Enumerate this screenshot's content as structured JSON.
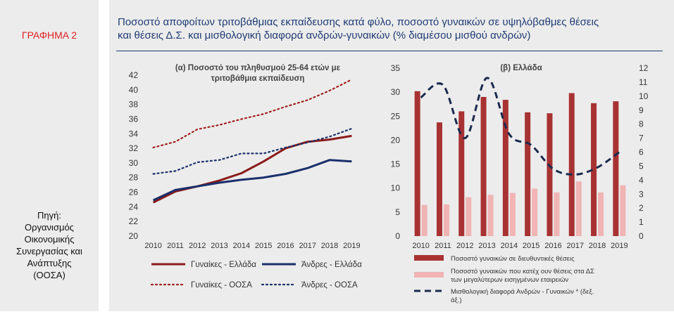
{
  "figure": {
    "label": "ΓΡΑΦΗΜΑ 2",
    "title_line1": "Ποσοστό αποφοίτων τριτοβάθμιας εκπαίδευσης κατά φύλο, ποσοστό γυναικών σε υψηλόβαθμες θέσεις",
    "title_line2": "και θέσεις Δ.Σ. και μισθολογική διαφορά ανδρών-γυναικών (% διαμέσου μισθού ανδρών)",
    "source_lines": [
      "Πηγή:",
      "Οργανισμός",
      "Οικονομικής",
      "Συνεργασίας και",
      "Ανάπτυξης",
      "(ΟΟΣΑ)"
    ]
  },
  "chart_data": [
    {
      "type": "line",
      "title": "(α) Ποσοστό του πληθυσμού 25-64 ετών με τριτοβάθμια εκπαίδευση",
      "title_lines": [
        "(α) Ποσοστό του πληθυσμού 25-64 ετών με",
        "τριτοβάθμια εκπαίδευση"
      ],
      "x": [
        "2010",
        "2011",
        "2012",
        "2013",
        "2014",
        "2015",
        "2016",
        "2017",
        "2018",
        "2019"
      ],
      "ylim": [
        20,
        42
      ],
      "yticks": [
        "20",
        "22",
        "24",
        "26",
        "28",
        "30",
        "32",
        "34",
        "36",
        "38",
        "40",
        "42"
      ],
      "grid": false,
      "legend_position": "bottom",
      "series": [
        {
          "name": "Γυναίκες - Ελλάδα",
          "style": "solid",
          "color": "#8b1a1a",
          "values": [
            24.6,
            26.1,
            26.8,
            27.6,
            28.6,
            30.2,
            32.0,
            32.9,
            33.2,
            33.7
          ]
        },
        {
          "name": "Άνδρες - Ελλάδα",
          "style": "solid",
          "color": "#1a2f6b",
          "values": [
            24.9,
            26.3,
            26.8,
            27.3,
            27.7,
            28.0,
            28.5,
            29.3,
            30.4,
            30.2
          ]
        },
        {
          "name": "Γυναίκες - ΟΟΣΑ",
          "style": "dotted",
          "color": "#a31f1f",
          "values": [
            32.1,
            32.9,
            34.6,
            35.2,
            36.0,
            36.7,
            37.7,
            38.6,
            39.9,
            41.4
          ]
        },
        {
          "name": "Άνδρες - ΟΟΣΑ",
          "style": "dotted",
          "color": "#1a2f6b",
          "values": [
            28.5,
            28.9,
            30.1,
            30.4,
            31.3,
            31.3,
            32.1,
            32.8,
            33.6,
            34.7
          ]
        }
      ]
    },
    {
      "type": "bar",
      "title": "(β) Ελλάδα",
      "categories": [
        "2010",
        "2011",
        "2012",
        "2013",
        "2014",
        "2015",
        "2016",
        "2017",
        "2018",
        "2019"
      ],
      "ylim": [
        0,
        35
      ],
      "yticks": [
        "0",
        "5",
        "10",
        "15",
        "20",
        "25",
        "30",
        "35"
      ],
      "y2lim": [
        0,
        12
      ],
      "y2ticks": [
        "0",
        "1",
        "2",
        "3",
        "4",
        "5",
        "6",
        "7",
        "8",
        "9",
        "10",
        "11",
        "12"
      ],
      "grid": false,
      "legend_position": "bottom",
      "series": [
        {
          "name": "Ποσοστό γυναικών σε διευθυντικές θέσεις",
          "type": "bar",
          "axis": "left",
          "color": "#a83232",
          "values": [
            30.2,
            23.7,
            26.0,
            29.0,
            28.4,
            25.8,
            25.6,
            29.8,
            27.7,
            28.1
          ]
        },
        {
          "name": "Ποσοστό γυναικών που κατέχ ουν θέσεις στα ΔΣ των μεγαλύτερων εισηγμένων εταιρειών",
          "type": "bar",
          "axis": "left",
          "color": "#f0b4b4",
          "values": [
            6.5,
            6.6,
            8.1,
            8.6,
            9.0,
            9.9,
            9.1,
            11.4,
            9.1,
            10.6
          ]
        },
        {
          "name": "Μισθολογική διαφορά Ανδρών - Γυναικών * (δεξ. άξ.)",
          "type": "line",
          "style": "dashed",
          "axis": "right",
          "color": "#1b2a4e",
          "values": [
            9.9,
            10.8,
            7.0,
            11.3,
            7.3,
            6.5,
            4.8,
            4.4,
            4.9,
            6.0
          ]
        }
      ],
      "legend_lines": [
        [
          "Ποσοστό γυναικών σε διευθυντικές θέσεις"
        ],
        [
          "Ποσοστό γυναικών που κατέχ ουν θέσεις στα ΔΣ",
          "των μεγαλύτερων εισηγμένων εταιρειών"
        ],
        [
          "Μισθολογική διαφορά Ανδρών - Γυναικών * (δεξ.",
          "άξ.)"
        ]
      ]
    }
  ]
}
